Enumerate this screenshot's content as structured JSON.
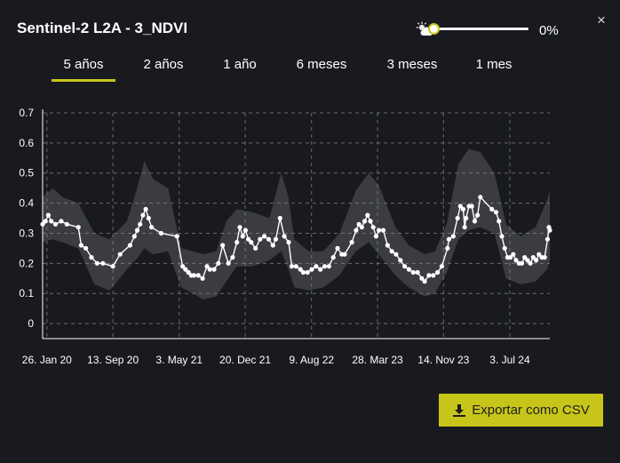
{
  "header": {
    "title": "Sentinel-2 L2A - 3_NDVI",
    "close_label": "×",
    "cloud_filter": {
      "icon": "sun-cloud-icon",
      "value": 0,
      "value_label": "0%"
    }
  },
  "tabs": [
    {
      "label": "5 años",
      "active": true
    },
    {
      "label": "2 años",
      "active": false
    },
    {
      "label": "1 año",
      "active": false
    },
    {
      "label": "6 meses",
      "active": false
    },
    {
      "label": "3 meses",
      "active": false
    },
    {
      "label": "1 mes",
      "active": false
    }
  ],
  "colors": {
    "accent": "#c8c51a",
    "background": "#181a20",
    "band": "#3c3e45",
    "line": "#ffffff"
  },
  "chart_data": {
    "type": "line",
    "title": "",
    "xlabel": "",
    "ylabel": "",
    "ylim": [
      -0.05,
      0.7
    ],
    "yticks": [
      "0.7",
      "0.6",
      "0.5",
      "0.4",
      "0.3",
      "0.2",
      "0.1",
      "0"
    ],
    "xlim": [
      "2020-01-11",
      "2024-11-20"
    ],
    "xticks": [
      {
        "date": "2020-01-26",
        "label": "26. Jan 20"
      },
      {
        "date": "2020-09-13",
        "label": "13. Sep 20"
      },
      {
        "date": "2021-05-03",
        "label": "3. May 21"
      },
      {
        "date": "2021-12-20",
        "label": "20. Dec 21"
      },
      {
        "date": "2022-08-09",
        "label": "9. Aug 22"
      },
      {
        "date": "2023-03-28",
        "label": "28. Mar 23"
      },
      {
        "date": "2023-11-14",
        "label": "14. Nov 23"
      },
      {
        "date": "2024-07-03",
        "label": "3. Jul 24"
      }
    ],
    "grid": true,
    "series": [
      {
        "values": [
          [
            "2020-01-11",
            0.33
          ],
          [
            "2020-01-21",
            0.34
          ],
          [
            "2020-01-31",
            0.36
          ],
          [
            "2020-02-10",
            0.34
          ],
          [
            "2020-02-25",
            0.33
          ],
          [
            "2020-03-16",
            0.34
          ],
          [
            "2020-04-05",
            0.33
          ],
          [
            "2020-05-15",
            0.32
          ],
          [
            "2020-05-25",
            0.26
          ],
          [
            "2020-06-10",
            0.25
          ],
          [
            "2020-06-30",
            0.22
          ],
          [
            "2020-07-20",
            0.2
          ],
          [
            "2020-08-09",
            0.2
          ],
          [
            "2020-09-13",
            0.19
          ],
          [
            "2020-10-08",
            0.23
          ],
          [
            "2020-11-12",
            0.26
          ],
          [
            "2020-11-27",
            0.29
          ],
          [
            "2020-12-07",
            0.31
          ],
          [
            "2020-12-17",
            0.33
          ],
          [
            "2020-12-27",
            0.36
          ],
          [
            "2021-01-06",
            0.38
          ],
          [
            "2021-01-16",
            0.35
          ],
          [
            "2021-01-26",
            0.32
          ],
          [
            "2021-03-01",
            0.3
          ],
          [
            "2021-04-25",
            0.29
          ],
          [
            "2021-05-15",
            0.19
          ],
          [
            "2021-05-25",
            0.18
          ],
          [
            "2021-06-04",
            0.17
          ],
          [
            "2021-06-14",
            0.16
          ],
          [
            "2021-06-24",
            0.16
          ],
          [
            "2021-07-09",
            0.16
          ],
          [
            "2021-07-24",
            0.15
          ],
          [
            "2021-08-08",
            0.19
          ],
          [
            "2021-08-18",
            0.18
          ],
          [
            "2021-09-02",
            0.18
          ],
          [
            "2021-09-17",
            0.2
          ],
          [
            "2021-10-02",
            0.26
          ],
          [
            "2021-10-22",
            0.2
          ],
          [
            "2021-11-06",
            0.22
          ],
          [
            "2021-11-21",
            0.27
          ],
          [
            "2021-12-01",
            0.32
          ],
          [
            "2021-12-11",
            0.29
          ],
          [
            "2021-12-21",
            0.31
          ],
          [
            "2021-12-31",
            0.28
          ],
          [
            "2022-01-10",
            0.27
          ],
          [
            "2022-01-25",
            0.25
          ],
          [
            "2022-02-10",
            0.28
          ],
          [
            "2022-02-25",
            0.29
          ],
          [
            "2022-03-12",
            0.28
          ],
          [
            "2022-03-27",
            0.26
          ],
          [
            "2022-04-06",
            0.28
          ],
          [
            "2022-04-21",
            0.35
          ],
          [
            "2022-05-06",
            0.29
          ],
          [
            "2022-05-21",
            0.27
          ],
          [
            "2022-06-01",
            0.19
          ],
          [
            "2022-06-16",
            0.19
          ],
          [
            "2022-07-01",
            0.18
          ],
          [
            "2022-07-11",
            0.17
          ],
          [
            "2022-07-26",
            0.17
          ],
          [
            "2022-08-10",
            0.18
          ],
          [
            "2022-08-25",
            0.19
          ],
          [
            "2022-09-09",
            0.18
          ],
          [
            "2022-09-24",
            0.19
          ],
          [
            "2022-10-09",
            0.19
          ],
          [
            "2022-10-24",
            0.22
          ],
          [
            "2022-11-08",
            0.25
          ],
          [
            "2022-11-23",
            0.23
          ],
          [
            "2022-12-03",
            0.23
          ],
          [
            "2022-12-28",
            0.27
          ],
          [
            "2023-01-12",
            0.31
          ],
          [
            "2023-01-22",
            0.33
          ],
          [
            "2023-02-01",
            0.32
          ],
          [
            "2023-02-11",
            0.34
          ],
          [
            "2023-02-21",
            0.36
          ],
          [
            "2023-03-03",
            0.34
          ],
          [
            "2023-03-13",
            0.32
          ],
          [
            "2023-03-23",
            0.29
          ],
          [
            "2023-04-02",
            0.31
          ],
          [
            "2023-04-17",
            0.31
          ],
          [
            "2023-05-02",
            0.26
          ],
          [
            "2023-05-17",
            0.24
          ],
          [
            "2023-06-01",
            0.23
          ],
          [
            "2023-06-16",
            0.21
          ],
          [
            "2023-07-01",
            0.19
          ],
          [
            "2023-07-16",
            0.18
          ],
          [
            "2023-07-31",
            0.17
          ],
          [
            "2023-08-15",
            0.17
          ],
          [
            "2023-08-30",
            0.15
          ],
          [
            "2023-09-09",
            0.14
          ],
          [
            "2023-09-24",
            0.16
          ],
          [
            "2023-10-09",
            0.16
          ],
          [
            "2023-10-24",
            0.17
          ],
          [
            "2023-11-08",
            0.19
          ],
          [
            "2023-11-28",
            0.25
          ],
          [
            "2023-12-03",
            0.28
          ],
          [
            "2023-12-18",
            0.29
          ],
          [
            "2024-01-02",
            0.35
          ],
          [
            "2024-01-12",
            0.39
          ],
          [
            "2024-01-22",
            0.38
          ],
          [
            "2024-01-27",
            0.32
          ],
          [
            "2024-02-01",
            0.35
          ],
          [
            "2024-02-11",
            0.39
          ],
          [
            "2024-02-21",
            0.39
          ],
          [
            "2024-03-02",
            0.34
          ],
          [
            "2024-03-12",
            0.36
          ],
          [
            "2024-03-22",
            0.42
          ],
          [
            "2024-05-01",
            0.38
          ],
          [
            "2024-05-16",
            0.37
          ],
          [
            "2024-05-26",
            0.34
          ],
          [
            "2024-06-05",
            0.29
          ],
          [
            "2024-06-15",
            0.25
          ],
          [
            "2024-06-25",
            0.22
          ],
          [
            "2024-07-05",
            0.22
          ],
          [
            "2024-07-15",
            0.23
          ],
          [
            "2024-07-25",
            0.21
          ],
          [
            "2024-08-04",
            0.2
          ],
          [
            "2024-08-14",
            0.2
          ],
          [
            "2024-08-24",
            0.22
          ],
          [
            "2024-09-03",
            0.21
          ],
          [
            "2024-09-13",
            0.2
          ],
          [
            "2024-09-23",
            0.22
          ],
          [
            "2024-10-03",
            0.21
          ],
          [
            "2024-10-13",
            0.23
          ],
          [
            "2024-10-23",
            0.22
          ],
          [
            "2024-11-02",
            0.22
          ],
          [
            "2024-11-12",
            0.28
          ],
          [
            "2024-11-17",
            0.32
          ],
          [
            "2024-11-20",
            0.31
          ]
        ]
      }
    ],
    "band": [
      [
        "2020-01-11",
        0.27,
        0.42
      ],
      [
        "2020-02-15",
        0.28,
        0.45
      ],
      [
        "2020-03-20",
        0.27,
        0.42
      ],
      [
        "2020-05-15",
        0.25,
        0.4
      ],
      [
        "2020-07-10",
        0.13,
        0.3
      ],
      [
        "2020-09-01",
        0.11,
        0.28
      ],
      [
        "2020-11-01",
        0.18,
        0.34
      ],
      [
        "2020-12-10",
        0.22,
        0.46
      ],
      [
        "2021-01-01",
        0.25,
        0.54
      ],
      [
        "2021-02-01",
        0.23,
        0.48
      ],
      [
        "2021-03-25",
        0.24,
        0.45
      ],
      [
        "2021-05-10",
        0.12,
        0.25
      ],
      [
        "2021-06-20",
        0.1,
        0.24
      ],
      [
        "2021-07-25",
        0.08,
        0.23
      ],
      [
        "2021-09-10",
        0.09,
        0.24
      ],
      [
        "2021-10-15",
        0.14,
        0.34
      ],
      [
        "2021-11-20",
        0.19,
        0.38
      ],
      [
        "2022-01-15",
        0.19,
        0.37
      ],
      [
        "2022-03-15",
        0.21,
        0.35
      ],
      [
        "2022-04-25",
        0.24,
        0.5
      ],
      [
        "2022-05-20",
        0.18,
        0.42
      ],
      [
        "2022-06-10",
        0.12,
        0.28
      ],
      [
        "2022-07-30",
        0.11,
        0.24
      ],
      [
        "2022-09-20",
        0.12,
        0.24
      ],
      [
        "2022-11-15",
        0.16,
        0.3
      ],
      [
        "2023-01-10",
        0.24,
        0.44
      ],
      [
        "2023-02-25",
        0.27,
        0.5
      ],
      [
        "2023-04-01",
        0.23,
        0.46
      ],
      [
        "2023-05-30",
        0.16,
        0.32
      ],
      [
        "2023-07-15",
        0.12,
        0.26
      ],
      [
        "2023-09-10",
        0.09,
        0.23
      ],
      [
        "2023-10-15",
        0.1,
        0.24
      ],
      [
        "2023-11-25",
        0.17,
        0.33
      ],
      [
        "2024-01-05",
        0.28,
        0.53
      ],
      [
        "2024-02-10",
        0.31,
        0.58
      ],
      [
        "2024-03-22",
        0.32,
        0.57
      ],
      [
        "2024-05-10",
        0.3,
        0.5
      ],
      [
        "2024-06-20",
        0.15,
        0.33
      ],
      [
        "2024-08-10",
        0.13,
        0.29
      ],
      [
        "2024-10-01",
        0.14,
        0.32
      ],
      [
        "2024-11-10",
        0.18,
        0.41
      ],
      [
        "2024-11-20",
        0.21,
        0.44
      ]
    ]
  },
  "export": {
    "label": "Exportar como CSV",
    "icon": "download-icon"
  }
}
